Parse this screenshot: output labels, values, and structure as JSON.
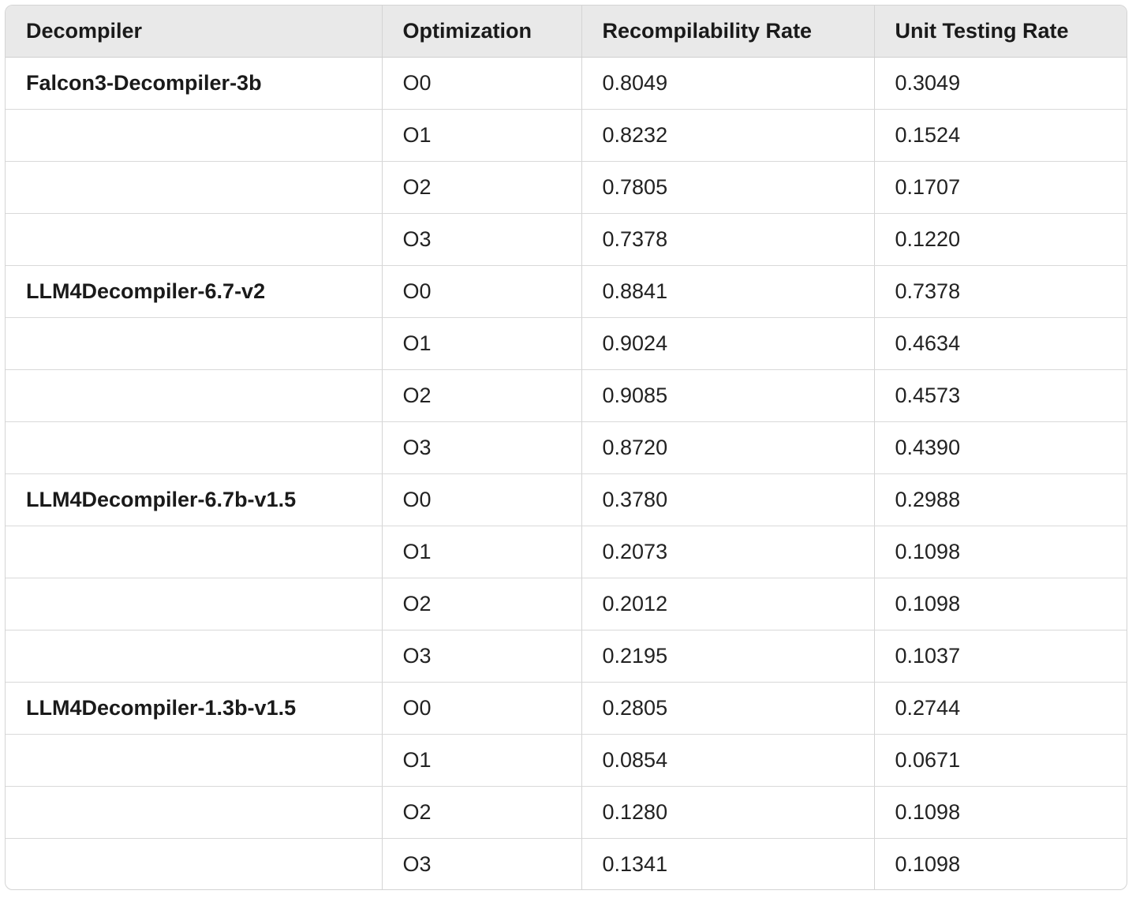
{
  "table": {
    "headers": [
      "Decompiler",
      "Optimization",
      "Recompilability Rate",
      "Unit Testing Rate"
    ],
    "rows": [
      [
        "Falcon3-Decompiler-3b",
        "O0",
        "0.8049",
        "0.3049"
      ],
      [
        "",
        "O1",
        "0.8232",
        "0.1524"
      ],
      [
        "",
        "O2",
        "0.7805",
        "0.1707"
      ],
      [
        "",
        "O3",
        "0.7378",
        "0.1220"
      ],
      [
        "LLM4Decompiler-6.7-v2",
        "O0",
        "0.8841",
        "0.7378"
      ],
      [
        "",
        "O1",
        "0.9024",
        "0.4634"
      ],
      [
        "",
        "O2",
        "0.9085",
        "0.4573"
      ],
      [
        "",
        "O3",
        "0.8720",
        "0.4390"
      ],
      [
        "LLM4Decompiler-6.7b-v1.5",
        "O0",
        "0.3780",
        "0.2988"
      ],
      [
        "",
        "O1",
        "0.2073",
        "0.1098"
      ],
      [
        "",
        "O2",
        "0.2012",
        "0.1098"
      ],
      [
        "",
        "O3",
        "0.2195",
        "0.1037"
      ],
      [
        "LLM4Decompiler-1.3b-v1.5",
        "O0",
        "0.2805",
        "0.2744"
      ],
      [
        "",
        "O1",
        "0.0854",
        "0.0671"
      ],
      [
        "",
        "O2",
        "0.1280",
        "0.1098"
      ],
      [
        "",
        "O3",
        "0.1341",
        "0.1098"
      ]
    ]
  }
}
